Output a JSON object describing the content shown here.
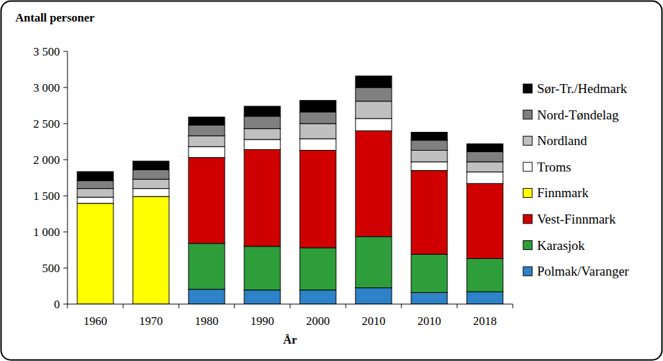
{
  "chart_data": {
    "type": "bar",
    "stacked": true,
    "grid": false,
    "legend": "right",
    "y_label": "Antall personer",
    "x_label": "År",
    "categories": [
      "1960",
      "1970",
      "1980",
      "1990",
      "2000",
      "2010",
      "2010",
      "2018"
    ],
    "ylim": [
      0,
      3500
    ],
    "yticks": [
      0,
      500,
      {
        "value": 1000,
        "label": "1 000"
      },
      {
        "value": 1500,
        "label": "1 500"
      },
      {
        "value": 2000,
        "label": "2 000"
      },
      {
        "value": 2500,
        "label": "2 500"
      },
      {
        "value": 3000,
        "label": "3 000"
      },
      {
        "value": 3500,
        "label": "3 500"
      }
    ],
    "series": [
      {
        "name": "Polmak/Varanger",
        "color": "#2e82c8",
        "values": [
          0,
          0,
          205,
          195,
          195,
          225,
          160,
          170
        ]
      },
      {
        "name": "Karasjok",
        "color": "#2e9e3a",
        "values": [
          0,
          0,
          635,
          605,
          585,
          710,
          530,
          460
        ]
      },
      {
        "name": "Vest-Finnmark",
        "color": "#d00000",
        "values": [
          0,
          0,
          1190,
          1340,
          1350,
          1465,
          1160,
          1040
        ]
      },
      {
        "name": "Finnmark",
        "color": "#ffff00",
        "values": [
          1395,
          1490,
          0,
          0,
          0,
          0,
          0,
          0
        ]
      },
      {
        "name": "Troms",
        "color": "#ffffff",
        "values": [
          85,
          110,
          150,
          140,
          160,
          170,
          120,
          160
        ]
      },
      {
        "name": "Nordland",
        "color": "#c0c0c0",
        "values": [
          120,
          130,
          150,
          150,
          210,
          240,
          160,
          140
        ]
      },
      {
        "name": "Nord-Tøndelag",
        "color": "#808080",
        "values": [
          110,
          130,
          150,
          170,
          160,
          190,
          140,
          140
        ]
      },
      {
        "name": "Sør-Tr./Hedmark",
        "color": "#000000",
        "values": [
          125,
          120,
          110,
          140,
          160,
          160,
          110,
          110
        ]
      }
    ]
  }
}
